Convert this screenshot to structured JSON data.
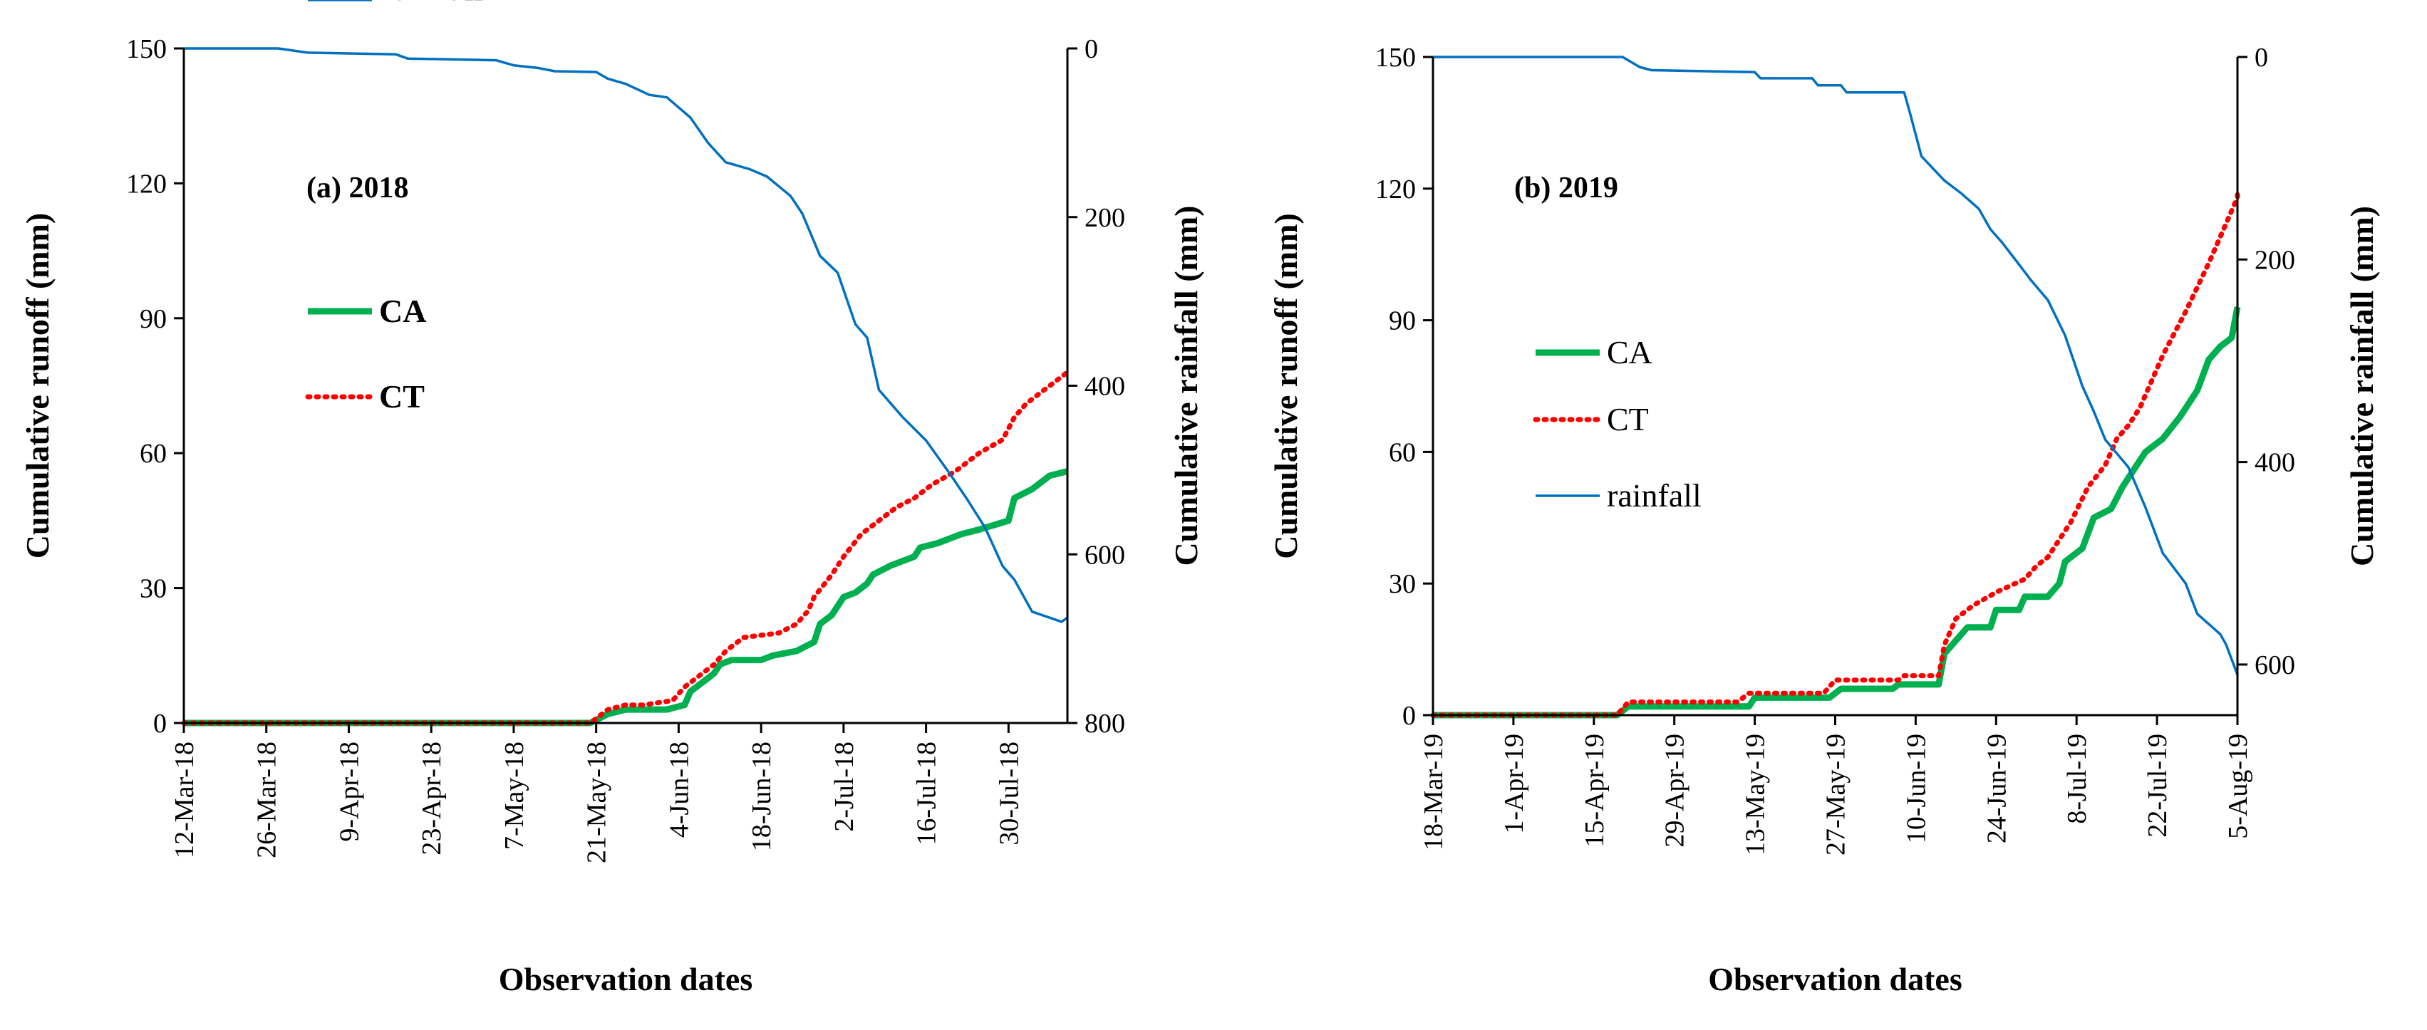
{
  "chart_data": [
    {
      "type": "line",
      "panel_label": "(a) 2018",
      "xlabel": "Observation dates",
      "ylabel": "Cumulative runoff (mm)",
      "y2label": "Cumulative rainfall (mm)",
      "ylim": [
        0,
        150
      ],
      "y2lim": [
        0,
        800
      ],
      "y2_inverted": true,
      "xlim": [
        0,
        150
      ],
      "y_ticks": [
        "0",
        "30",
        "60",
        "90",
        "120",
        "150"
      ],
      "y2_ticks": [
        "0",
        "200",
        "400",
        "600",
        "800"
      ],
      "x_ticks": [
        {
          "day": 0,
          "label": "12-Mar-18"
        },
        {
          "day": 14,
          "label": "26-Mar-18"
        },
        {
          "day": 28,
          "label": "9-Apr-18"
        },
        {
          "day": 42,
          "label": "23-Apr-18"
        },
        {
          "day": 56,
          "label": "7-May-18"
        },
        {
          "day": 70,
          "label": "21-May-18"
        },
        {
          "day": 84,
          "label": "4-Jun-18"
        },
        {
          "day": 98,
          "label": "18-Jun-18"
        },
        {
          "day": 112,
          "label": "2-Jul-18"
        },
        {
          "day": 126,
          "label": "16-Jul-18"
        },
        {
          "day": 140,
          "label": "30-Jul-18"
        }
      ],
      "legend": [
        {
          "name": "CA",
          "color": "#00b050",
          "style": "solid-thick"
        },
        {
          "name": "CT",
          "color": "#ff0000",
          "style": "dotted"
        },
        {
          "name": "rainfall",
          "color": "#0070c0",
          "style": "solid-thin"
        }
      ],
      "series": [
        {
          "name": "CA",
          "axis": "left",
          "points": [
            [
              0,
              0
            ],
            [
              69,
              0
            ],
            [
              72,
              2
            ],
            [
              75,
              3
            ],
            [
              78,
              3
            ],
            [
              82,
              3
            ],
            [
              85,
              4
            ],
            [
              86,
              7
            ],
            [
              88,
              9
            ],
            [
              90,
              11
            ],
            [
              91,
              13
            ],
            [
              93,
              14
            ],
            [
              98,
              14
            ],
            [
              100,
              15
            ],
            [
              104,
              16
            ],
            [
              107,
              18
            ],
            [
              108,
              22
            ],
            [
              110,
              24
            ],
            [
              112,
              28
            ],
            [
              114,
              29
            ],
            [
              116,
              31
            ],
            [
              117,
              33
            ],
            [
              120,
              35
            ],
            [
              124,
              37
            ],
            [
              125,
              39
            ],
            [
              128,
              40
            ],
            [
              132,
              42
            ],
            [
              135,
              43
            ],
            [
              140,
              45
            ],
            [
              141,
              50
            ],
            [
              144,
              52
            ],
            [
              147,
              55
            ],
            [
              150,
              56
            ]
          ]
        },
        {
          "name": "CT",
          "axis": "left",
          "points": [
            [
              0,
              0
            ],
            [
              69,
              0
            ],
            [
              72,
              3
            ],
            [
              75,
              4
            ],
            [
              78,
              4
            ],
            [
              83,
              5
            ],
            [
              85,
              8
            ],
            [
              87,
              10
            ],
            [
              90,
              13
            ],
            [
              92,
              16
            ],
            [
              95,
              19
            ],
            [
              101,
              20
            ],
            [
              104,
              22
            ],
            [
              106,
              25
            ],
            [
              107,
              28
            ],
            [
              110,
              33
            ],
            [
              112,
              37
            ],
            [
              115,
              42
            ],
            [
              118,
              45
            ],
            [
              121,
              48
            ],
            [
              124,
              50
            ],
            [
              127,
              53
            ],
            [
              131,
              56
            ],
            [
              135,
              60
            ],
            [
              139,
              63
            ],
            [
              141,
              68
            ],
            [
              143,
              71
            ],
            [
              146,
              74
            ],
            [
              149,
              77
            ],
            [
              150,
              78
            ]
          ]
        },
        {
          "name": "rainfall",
          "axis": "right",
          "points": [
            [
              0,
              0
            ],
            [
              16,
              0
            ],
            [
              21,
              5
            ],
            [
              36,
              7
            ],
            [
              38,
              12
            ],
            [
              53,
              14
            ],
            [
              56,
              20
            ],
            [
              60,
              23
            ],
            [
              63,
              27
            ],
            [
              70,
              28
            ],
            [
              72,
              36
            ],
            [
              75,
              42
            ],
            [
              79,
              55
            ],
            [
              82,
              58
            ],
            [
              86,
              82
            ],
            [
              89,
              112
            ],
            [
              92,
              135
            ],
            [
              96,
              143
            ],
            [
              99,
              152
            ],
            [
              103,
              175
            ],
            [
              105,
              196
            ],
            [
              108,
              246
            ],
            [
              111,
              266
            ],
            [
              114,
              327
            ],
            [
              116,
              343
            ],
            [
              118,
              405
            ],
            [
              122,
              437
            ],
            [
              126,
              465
            ],
            [
              130,
              504
            ],
            [
              133,
              535
            ],
            [
              136,
              568
            ],
            [
              139,
              614
            ],
            [
              141,
              630
            ],
            [
              144,
              668
            ],
            [
              149,
              680
            ],
            [
              150,
              675
            ]
          ]
        }
      ]
    },
    {
      "type": "line",
      "panel_label": "(b) 2019",
      "xlabel": "Observation dates",
      "ylabel": "Cumulative runoff (mm)",
      "y2label": "Cumulative rainfall (mm)",
      "ylim": [
        0,
        150
      ],
      "y2lim": [
        0,
        650
      ],
      "y2_inverted": true,
      "xlim": [
        0,
        140
      ],
      "y_ticks": [
        "0",
        "30",
        "60",
        "90",
        "120",
        "150"
      ],
      "y2_ticks": [
        "0",
        "200",
        "400",
        "600"
      ],
      "x_ticks": [
        {
          "day": 0,
          "label": "18-Mar-19"
        },
        {
          "day": 14,
          "label": "1-Apr-19"
        },
        {
          "day": 28,
          "label": "15-Apr-19"
        },
        {
          "day": 42,
          "label": "29-Apr-19"
        },
        {
          "day": 56,
          "label": "13-May-19"
        },
        {
          "day": 70,
          "label": "27-May-19"
        },
        {
          "day": 84,
          "label": "10-Jun-19"
        },
        {
          "day": 98,
          "label": "24-Jun-19"
        },
        {
          "day": 112,
          "label": "8-Jul-19"
        },
        {
          "day": 126,
          "label": "22-Jul-19"
        },
        {
          "day": 140,
          "label": "5-Aug-19"
        }
      ],
      "legend": [
        {
          "name": "CA",
          "color": "#00b050",
          "style": "solid-thick"
        },
        {
          "name": "CT",
          "color": "#ff0000",
          "style": "dotted"
        },
        {
          "name": "rainfall",
          "color": "#0070c0",
          "style": "solid-thin"
        }
      ],
      "series": [
        {
          "name": "CA",
          "axis": "left",
          "points": [
            [
              0,
              0
            ],
            [
              32,
              0
            ],
            [
              34,
              2
            ],
            [
              55,
              2
            ],
            [
              56,
              4
            ],
            [
              69,
              4
            ],
            [
              71,
              6
            ],
            [
              80,
              6
            ],
            [
              81,
              7
            ],
            [
              88,
              7
            ],
            [
              89,
              14
            ],
            [
              91,
              17
            ],
            [
              93,
              20
            ],
            [
              97,
              20
            ],
            [
              98,
              24
            ],
            [
              102,
              24
            ],
            [
              103,
              27
            ],
            [
              107,
              27
            ],
            [
              109,
              30
            ],
            [
              110,
              35
            ],
            [
              113,
              38
            ],
            [
              115,
              45
            ],
            [
              118,
              47
            ],
            [
              120,
              52
            ],
            [
              122,
              56
            ],
            [
              124,
              60
            ],
            [
              127,
              63
            ],
            [
              130,
              68
            ],
            [
              133,
              74
            ],
            [
              135,
              81
            ],
            [
              137,
              84
            ],
            [
              139,
              86
            ],
            [
              140,
              93
            ]
          ]
        },
        {
          "name": "CT",
          "axis": "left",
          "points": [
            [
              0,
              0
            ],
            [
              32,
              0
            ],
            [
              34,
              3
            ],
            [
              53,
              3
            ],
            [
              55,
              5
            ],
            [
              68,
              5
            ],
            [
              70,
              8
            ],
            [
              81,
              8
            ],
            [
              82,
              9
            ],
            [
              88,
              9
            ],
            [
              89,
              16
            ],
            [
              91,
              22
            ],
            [
              94,
              25
            ],
            [
              98,
              28
            ],
            [
              103,
              31
            ],
            [
              105,
              34
            ],
            [
              107,
              36
            ],
            [
              109,
              40
            ],
            [
              111,
              44
            ],
            [
              114,
              52
            ],
            [
              117,
              57
            ],
            [
              119,
              63
            ],
            [
              121,
              66
            ],
            [
              123,
              70
            ],
            [
              127,
              82
            ],
            [
              131,
              92
            ],
            [
              135,
              103
            ],
            [
              138,
              112
            ],
            [
              140,
              118
            ],
            [
              140,
              120
            ]
          ]
        },
        {
          "name": "rainfall",
          "axis": "right",
          "points": [
            [
              0,
              0
            ],
            [
              33,
              0
            ],
            [
              36,
              10
            ],
            [
              38,
              13
            ],
            [
              56,
              15
            ],
            [
              57,
              21
            ],
            [
              66,
              21
            ],
            [
              67,
              28
            ],
            [
              71,
              28
            ],
            [
              72,
              35
            ],
            [
              82,
              35
            ],
            [
              83,
              55
            ],
            [
              85,
              98
            ],
            [
              87,
              110
            ],
            [
              89,
              122
            ],
            [
              92,
              135
            ],
            [
              95,
              150
            ],
            [
              97,
              170
            ],
            [
              99,
              183
            ],
            [
              102,
              205
            ],
            [
              104,
              220
            ],
            [
              107,
              240
            ],
            [
              110,
              275
            ],
            [
              113,
              325
            ],
            [
              115,
              350
            ],
            [
              117,
              378
            ],
            [
              121,
              405
            ],
            [
              124,
              445
            ],
            [
              127,
              490
            ],
            [
              131,
              520
            ],
            [
              133,
              550
            ],
            [
              135,
              560
            ],
            [
              137,
              570
            ],
            [
              138,
              580
            ],
            [
              139,
              595
            ],
            [
              140,
              610
            ]
          ]
        }
      ]
    }
  ]
}
